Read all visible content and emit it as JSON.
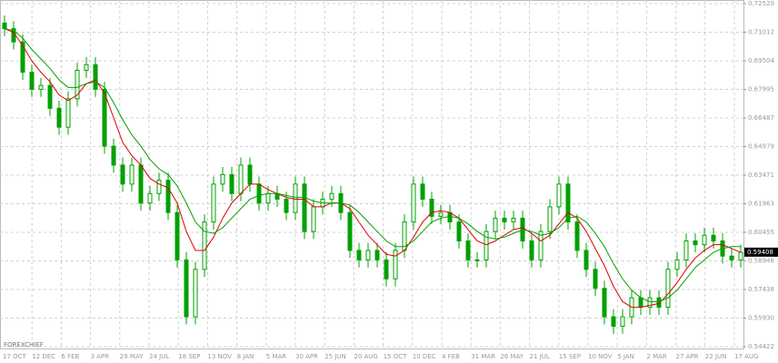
{
  "chart_data": {
    "type": "candlestick",
    "watermark": "FOREXCHIEF",
    "candle_color": "#00a000",
    "grid": true,
    "x_labels": [
      "17 OCT",
      "12 DEC",
      "6 FEB",
      "3 APR",
      "29 MAY",
      "24 JUL",
      "18 SEP",
      "13 NOV",
      "8 JAN",
      "5 MAR",
      "30 APR",
      "25 JUN",
      "20 AUG",
      "15 OCT",
      "10 DEC",
      "4 FEB",
      "31 MAR",
      "26 MAY",
      "21 JUL",
      "15 SEP",
      "10 NOV",
      "5 JAN",
      "2 MAR",
      "27 APR",
      "22 JUN",
      "17 AUG"
    ],
    "ylim": [
      0.54422,
      0.7252
    ],
    "yticks": [
      0.54422,
      {
        "value": 0.5593,
        "label": "0.55930"
      },
      0.57438,
      0.58946,
      0.60455,
      0.61963,
      0.63471,
      0.64979,
      0.66487,
      0.67995,
      0.69504,
      0.71012,
      {
        "value": 0.7252,
        "label": "0.72520"
      }
    ],
    "last_price": 0.59408,
    "open": [
      0.715,
      0.712,
      0.705,
      0.689,
      0.68,
      0.682,
      0.67,
      0.66,
      0.675,
      0.69,
      0.693,
      0.68,
      0.65,
      0.64,
      0.63,
      0.64,
      0.62,
      0.625,
      0.632,
      0.615,
      0.59,
      0.56,
      0.585,
      0.61,
      0.63,
      0.635,
      0.625,
      0.64,
      0.63,
      0.62,
      0.625,
      0.622,
      0.615,
      0.63,
      0.605,
      0.618,
      0.622,
      0.625,
      0.615,
      0.595,
      0.59,
      0.595,
      0.59,
      0.58,
      0.595,
      0.61,
      0.63,
      0.622,
      0.613,
      0.615,
      0.61,
      0.6,
      0.59,
      0.59,
      0.605,
      0.612,
      0.61,
      0.612,
      0.6,
      0.59,
      0.605,
      0.618,
      0.63,
      0.61,
      0.595,
      0.585,
      0.575,
      0.56,
      0.555,
      0.56,
      0.57,
      0.565,
      0.57,
      0.565,
      0.585,
      0.59,
      0.6,
      0.598,
      0.603,
      0.6,
      0.592,
      0.59
    ],
    "high": [
      0.719,
      0.716,
      0.709,
      0.693,
      0.686,
      0.686,
      0.674,
      0.679,
      0.694,
      0.697,
      0.697,
      0.684,
      0.654,
      0.644,
      0.644,
      0.644,
      0.629,
      0.636,
      0.636,
      0.619,
      0.594,
      0.589,
      0.614,
      0.634,
      0.639,
      0.639,
      0.644,
      0.644,
      0.634,
      0.629,
      0.629,
      0.626,
      0.634,
      0.634,
      0.622,
      0.626,
      0.629,
      0.629,
      0.619,
      0.599,
      0.599,
      0.599,
      0.594,
      0.599,
      0.614,
      0.634,
      0.634,
      0.626,
      0.619,
      0.619,
      0.614,
      0.604,
      0.594,
      0.609,
      0.616,
      0.616,
      0.616,
      0.616,
      0.604,
      0.609,
      0.622,
      0.634,
      0.634,
      0.614,
      0.599,
      0.589,
      0.579,
      0.564,
      0.564,
      0.574,
      0.574,
      0.574,
      0.574,
      0.589,
      0.594,
      0.604,
      0.604,
      0.607,
      0.607,
      0.604,
      0.596,
      0.598
    ],
    "low": [
      0.708,
      0.701,
      0.685,
      0.676,
      0.676,
      0.666,
      0.656,
      0.656,
      0.671,
      0.686,
      0.676,
      0.646,
      0.636,
      0.626,
      0.626,
      0.616,
      0.616,
      0.621,
      0.611,
      0.586,
      0.556,
      0.556,
      0.581,
      0.606,
      0.626,
      0.621,
      0.621,
      0.626,
      0.616,
      0.616,
      0.618,
      0.611,
      0.611,
      0.601,
      0.601,
      0.614,
      0.618,
      0.611,
      0.591,
      0.586,
      0.586,
      0.586,
      0.576,
      0.576,
      0.591,
      0.606,
      0.618,
      0.609,
      0.609,
      0.606,
      0.596,
      0.586,
      0.586,
      0.586,
      0.601,
      0.606,
      0.606,
      0.596,
      0.586,
      0.586,
      0.601,
      0.614,
      0.606,
      0.591,
      0.581,
      0.571,
      0.556,
      0.551,
      0.551,
      0.556,
      0.561,
      0.561,
      0.561,
      0.561,
      0.581,
      0.586,
      0.594,
      0.594,
      0.596,
      0.588,
      0.586,
      0.586
    ],
    "close": [
      0.712,
      0.705,
      0.689,
      0.68,
      0.682,
      0.67,
      0.66,
      0.675,
      0.69,
      0.693,
      0.68,
      0.65,
      0.64,
      0.63,
      0.64,
      0.62,
      0.625,
      0.632,
      0.615,
      0.59,
      0.56,
      0.585,
      0.61,
      0.63,
      0.635,
      0.625,
      0.64,
      0.63,
      0.62,
      0.625,
      0.622,
      0.615,
      0.63,
      0.605,
      0.618,
      0.622,
      0.625,
      0.615,
      0.595,
      0.59,
      0.595,
      0.59,
      0.58,
      0.595,
      0.61,
      0.63,
      0.622,
      0.613,
      0.615,
      0.61,
      0.6,
      0.59,
      0.59,
      0.605,
      0.612,
      0.61,
      0.612,
      0.6,
      0.59,
      0.605,
      0.618,
      0.63,
      0.61,
      0.595,
      0.585,
      0.575,
      0.56,
      0.555,
      0.56,
      0.57,
      0.565,
      0.57,
      0.565,
      0.585,
      0.59,
      0.6,
      0.598,
      0.603,
      0.6,
      0.592,
      0.59,
      0.594
    ],
    "ma_lines": [
      {
        "color": "#e00000",
        "values": [
          0.712,
          0.71,
          0.703,
          0.695,
          0.689,
          0.684,
          0.677,
          0.674,
          0.677,
          0.683,
          0.685,
          0.678,
          0.665,
          0.652,
          0.645,
          0.64,
          0.633,
          0.63,
          0.628,
          0.62,
          0.605,
          0.595,
          0.595,
          0.602,
          0.612,
          0.62,
          0.625,
          0.63,
          0.63,
          0.627,
          0.625,
          0.623,
          0.622,
          0.622,
          0.618,
          0.618,
          0.62,
          0.62,
          0.617,
          0.61,
          0.603,
          0.598,
          0.593,
          0.592,
          0.595,
          0.602,
          0.61,
          0.615,
          0.616,
          0.615,
          0.612,
          0.606,
          0.6,
          0.598,
          0.6,
          0.603,
          0.606,
          0.607,
          0.604,
          0.6,
          0.603,
          0.609,
          0.615,
          0.612,
          0.605,
          0.596,
          0.587,
          0.576,
          0.568,
          0.565,
          0.565,
          0.566,
          0.567,
          0.572,
          0.578,
          0.585,
          0.591,
          0.595,
          0.598,
          0.598,
          0.596,
          0.594
        ]
      },
      {
        "color": "#00a000",
        "values": [
          0.712,
          0.711,
          0.707,
          0.701,
          0.696,
          0.691,
          0.685,
          0.681,
          0.681,
          0.683,
          0.684,
          0.681,
          0.673,
          0.664,
          0.656,
          0.65,
          0.643,
          0.638,
          0.635,
          0.629,
          0.62,
          0.61,
          0.605,
          0.604,
          0.607,
          0.612,
          0.617,
          0.622,
          0.624,
          0.625,
          0.625,
          0.624,
          0.623,
          0.623,
          0.621,
          0.62,
          0.62,
          0.62,
          0.619,
          0.615,
          0.61,
          0.605,
          0.6,
          0.597,
          0.597,
          0.6,
          0.605,
          0.61,
          0.612,
          0.613,
          0.612,
          0.609,
          0.605,
          0.602,
          0.601,
          0.602,
          0.604,
          0.606,
          0.605,
          0.603,
          0.604,
          0.607,
          0.612,
          0.613,
          0.61,
          0.604,
          0.597,
          0.588,
          0.58,
          0.574,
          0.57,
          0.568,
          0.568,
          0.57,
          0.574,
          0.58,
          0.586,
          0.59,
          0.594,
          0.596,
          0.597,
          0.597
        ]
      }
    ]
  }
}
